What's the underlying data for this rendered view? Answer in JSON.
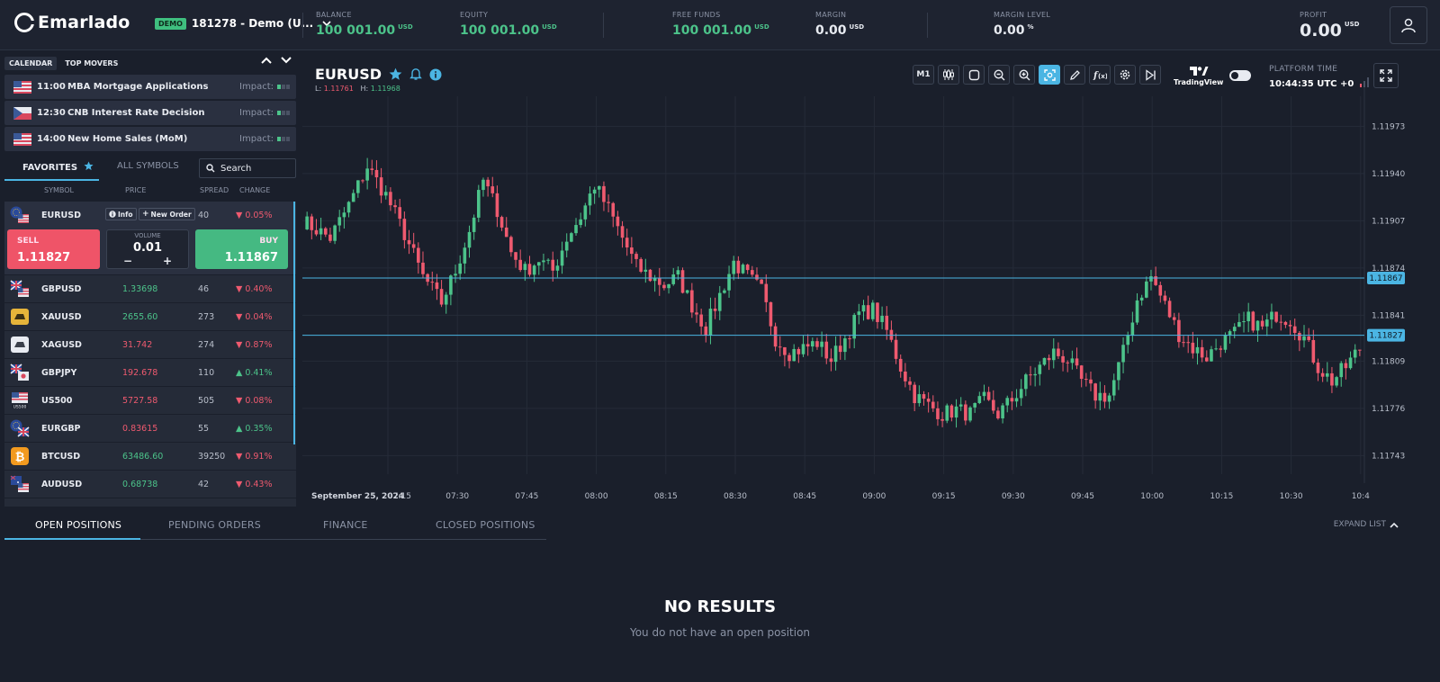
{
  "app": {
    "brand": "Emarlado"
  },
  "account": {
    "badge": "DEMO",
    "name": "181278 - Demo (U..."
  },
  "stats": {
    "balance": {
      "label": "BALANCE",
      "value": "100 001.00",
      "unit": "USD"
    },
    "equity": {
      "label": "EQUITY",
      "value": "100 001.00",
      "unit": "USD"
    },
    "free_funds": {
      "label": "FREE FUNDS",
      "value": "100 001.00",
      "unit": "USD"
    },
    "margin": {
      "label": "MARGIN",
      "value": "0.00",
      "unit": "USD"
    },
    "margin_level": {
      "label": "MARGIN LEVEL",
      "value": "0.00",
      "unit": "%"
    },
    "profit": {
      "label": "PROFIT",
      "value": "0.00",
      "unit": "USD"
    }
  },
  "calendar": {
    "tabs": [
      "CALENDAR",
      "TOP MOVERS"
    ],
    "events": [
      {
        "flag": "us",
        "time": "11:00",
        "title": "MBA Mortgage Applications",
        "impact_label": "Impact:",
        "impact": 1
      },
      {
        "flag": "cz",
        "time": "12:30",
        "title": "CNB Interest Rate Decision",
        "impact_label": "Impact:",
        "impact": 1
      },
      {
        "flag": "us",
        "time": "14:00",
        "title": "New Home Sales (MoM)",
        "impact_label": "Impact:",
        "impact": 1
      }
    ]
  },
  "symbols": {
    "tabs": {
      "favorites": "FAVORITES",
      "all": "ALL SYMBOLS"
    },
    "search_placeholder": "Search",
    "headers": {
      "symbol": "SYMBOL",
      "price": "PRICE",
      "spread": "SPREAD",
      "change": "CHANGE"
    },
    "selected": {
      "symbol": "EURUSD",
      "spread": "40",
      "change": "0.05%",
      "direction": "down",
      "info_label": "Info",
      "new_order_label": "New Order",
      "sell_label": "SELL",
      "sell_price": "1.11827",
      "buy_label": "BUY",
      "buy_price": "1.11867",
      "volume_label": "VOLUME",
      "volume": "0.01",
      "minus": "−",
      "plus": "+"
    },
    "rows": [
      {
        "icon": "gb-us-flag-icon",
        "symbol": "GBPUSD",
        "price": "1.33698",
        "price_color": "green",
        "spread": "46",
        "change": "0.40%",
        "direction": "down"
      },
      {
        "icon": "gold-icon",
        "symbol": "XAUUSD",
        "price": "2655.60",
        "price_color": "green",
        "spread": "273",
        "change": "0.04%",
        "direction": "down"
      },
      {
        "icon": "silver-icon",
        "symbol": "XAGUSD",
        "price": "31.742",
        "price_color": "red",
        "spread": "274",
        "change": "0.87%",
        "direction": "down"
      },
      {
        "icon": "gb-jp-flag-icon",
        "symbol": "GBPJPY",
        "price": "192.678",
        "price_color": "red",
        "spread": "110",
        "change": "0.41%",
        "direction": "up"
      },
      {
        "icon": "us500-icon",
        "symbol": "US500",
        "price": "5727.58",
        "price_color": "red",
        "spread": "505",
        "change": "0.08%",
        "direction": "down"
      },
      {
        "icon": "eu-gb-flag-icon",
        "symbol": "EURGBP",
        "price": "0.83615",
        "price_color": "red",
        "spread": "55",
        "change": "0.35%",
        "direction": "up"
      },
      {
        "icon": "bitcoin-icon",
        "symbol": "BTCUSD",
        "price": "63486.60",
        "price_color": "green",
        "spread": "39250",
        "change": "0.91%",
        "direction": "down"
      },
      {
        "icon": "au-us-flag-icon",
        "symbol": "AUDUSD",
        "price": "0.68738",
        "price_color": "green",
        "spread": "42",
        "change": "0.43%",
        "direction": "down"
      }
    ]
  },
  "chart_header": {
    "symbol": "EURUSD",
    "low_label": "L:",
    "low": "1.11761",
    "high_label": "H:",
    "high": "1.11968",
    "timeframe": "M1",
    "tradingview_label": "TradingView",
    "platform_time_label": "PLATFORM TIME",
    "platform_time": "10:44:35 UTC +0"
  },
  "colors": {
    "up": "#4cc38a",
    "down": "#ef5a6f",
    "accent": "#4bb5e3"
  },
  "chart_data": {
    "type": "candlestick",
    "title": "EURUSD",
    "date_label": "September 25, 2024",
    "x_ticks": [
      "07:15",
      "07:30",
      "07:45",
      "08:00",
      "08:15",
      "08:30",
      "08:45",
      "09:00",
      "09:15",
      "09:30",
      "09:45",
      "10:00",
      "10:15",
      "10:30",
      "10:4"
    ],
    "y_ticks": [
      1.11973,
      1.1194,
      1.11907,
      1.11874,
      1.11841,
      1.11809,
      1.11776,
      1.11743
    ],
    "ylim": [
      1.1173,
      1.11994
    ],
    "price_lines": [
      {
        "name": "ask",
        "value": 1.11867,
        "label": "1.11867"
      },
      {
        "name": "bid",
        "value": 1.11827,
        "label": "1.11827"
      }
    ],
    "close_path": [
      [
        0,
        1.11907
      ],
      [
        6,
        1.11895
      ],
      [
        10,
        1.11918
      ],
      [
        14,
        1.11945
      ],
      [
        18,
        1.11925
      ],
      [
        22,
        1.11898
      ],
      [
        26,
        1.11868
      ],
      [
        30,
        1.1185
      ],
      [
        33,
        1.11872
      ],
      [
        36,
        1.119
      ],
      [
        39,
        1.11935
      ],
      [
        42,
        1.11915
      ],
      [
        45,
        1.11885
      ],
      [
        48,
        1.11872
      ],
      [
        51,
        1.1188
      ],
      [
        54,
        1.11872
      ],
      [
        57,
        1.11895
      ],
      [
        60,
        1.1191
      ],
      [
        63,
        1.11932
      ],
      [
        66,
        1.11915
      ],
      [
        69,
        1.11895
      ],
      [
        72,
        1.11875
      ],
      [
        75,
        1.11868
      ],
      [
        78,
        1.11862
      ],
      [
        81,
        1.11868
      ],
      [
        84,
        1.11848
      ],
      [
        87,
        1.11832
      ],
      [
        90,
        1.11855
      ],
      [
        93,
        1.11878
      ],
      [
        96,
        1.11868
      ],
      [
        99,
        1.11858
      ],
      [
        102,
        1.11825
      ],
      [
        105,
        1.11815
      ],
      [
        108,
        1.11818
      ],
      [
        111,
        1.11822
      ],
      [
        114,
        1.1181
      ],
      [
        117,
        1.11825
      ],
      [
        120,
        1.11842
      ],
      [
        123,
        1.11845
      ],
      [
        126,
        1.1183
      ],
      [
        129,
        1.11805
      ],
      [
        132,
        1.11785
      ],
      [
        135,
        1.11778
      ],
      [
        138,
        1.11772
      ],
      [
        141,
        1.11775
      ],
      [
        144,
        1.11772
      ],
      [
        147,
        1.11782
      ],
      [
        150,
        1.11772
      ],
      [
        153,
        1.11782
      ],
      [
        156,
        1.11795
      ],
      [
        159,
        1.11805
      ],
      [
        162,
        1.11815
      ],
      [
        165,
        1.1181
      ],
      [
        168,
        1.11795
      ],
      [
        171,
        1.11785
      ],
      [
        174,
        1.11785
      ],
      [
        177,
        1.11815
      ],
      [
        180,
        1.11852
      ],
      [
        183,
        1.11868
      ],
      [
        186,
        1.11848
      ],
      [
        189,
        1.11828
      ],
      [
        192,
        1.11818
      ],
      [
        195,
        1.11812
      ],
      [
        198,
        1.11822
      ],
      [
        201,
        1.11828
      ],
      [
        204,
        1.11838
      ],
      [
        207,
        1.11832
      ],
      [
        210,
        1.11842
      ],
      [
        213,
        1.11838
      ],
      [
        216,
        1.11825
      ],
      [
        219,
        1.11805
      ],
      [
        222,
        1.11795
      ],
      [
        225,
        1.11805
      ],
      [
        228,
        1.11818
      ]
    ]
  },
  "bottom": {
    "tabs": [
      "OPEN POSITIONS",
      "PENDING ORDERS",
      "FINANCE",
      "CLOSED POSITIONS"
    ],
    "expand_label": "EXPAND LIST",
    "empty_title": "NO RESULTS",
    "empty_subtitle": "You do not have an open position"
  }
}
